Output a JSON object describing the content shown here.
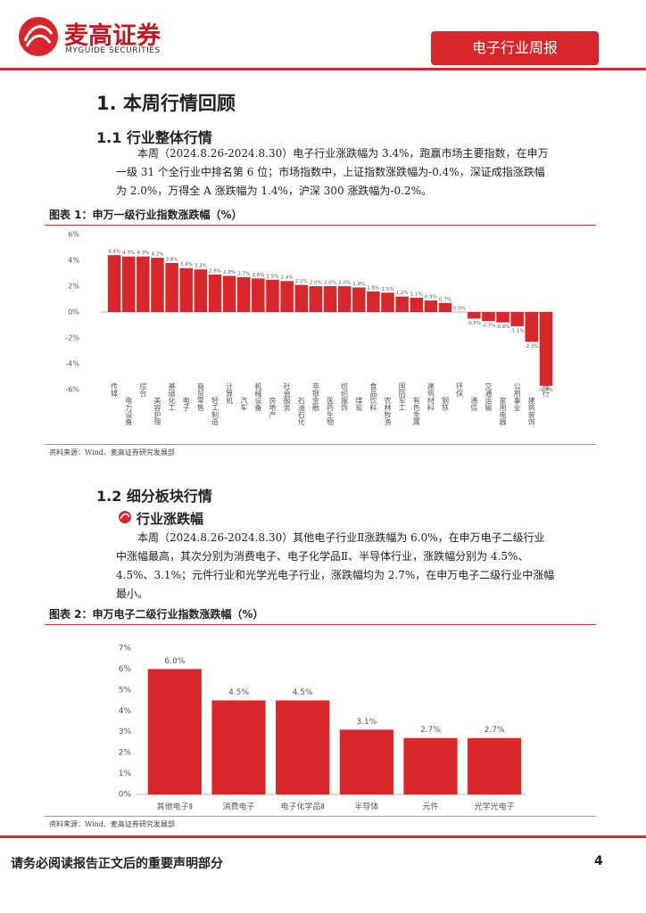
{
  "header": {
    "logo_cn": "麦高证券",
    "logo_en": "MYGUIDE SECURITIES",
    "report_type": "电子行业周报"
  },
  "h1": "1. 本周行情回顾",
  "s1": {
    "heading": "1.1 行业整体行情",
    "paragraph": "本周（2024.8.26-2024.8.30）电子行业涨跌幅为 3.4%，跑赢市场主要指数，在申万一级 31 个全行业中排名第 6 位；市场指数中，上证指数涨跌幅为-0.4%，深证成指涨跌幅为 2.0%，万得全 A 涨跌幅为 1.4%，沪深 300 涨跌幅为-0.2%。"
  },
  "s2": {
    "heading": "1.2 细分板块行情",
    "subheading": "行业涨跌幅",
    "paragraph": "本周（2024.8.26-2024.8.30）其他电子行业Ⅱ涨跌幅为 6.0%，在申万电子二级行业中涨幅最高，其次分别为消费电子、电子化学品Ⅱ、半导体行业，涨跌幅分别为 4.5%、4.5%、3.1%；元件行业和光学光电子行业，涨跌幅均为 2.7%，在申万电子二级行业中涨幅最小。"
  },
  "chart_data": [
    {
      "type": "bar",
      "title": "图表 1：申万一级行业指数涨跌幅（%）",
      "source": "资料来源：Wind、麦高证券研究发展部",
      "categories": [
        "传媒",
        "电力设备",
        "综合",
        "美容护理",
        "基础化工",
        "电子",
        "商贸零售",
        "轻工制造",
        "计算机",
        "汽车",
        "机械设备",
        "房地产",
        "社会服务",
        "石油石化",
        "非银金融",
        "医药生物",
        "纺织服饰",
        "煤炭",
        "食品饮料",
        "农林牧渔",
        "国防军工",
        "有色金属",
        "建筑材料",
        "钢铁",
        "环保",
        "通信",
        "交通运输",
        "家用电器",
        "公用事业",
        "建筑装饰",
        "银行"
      ],
      "values": [
        4.4,
        4.3,
        4.3,
        4.2,
        3.8,
        3.4,
        3.3,
        2.9,
        2.8,
        2.7,
        2.6,
        2.5,
        2.4,
        2.1,
        2.0,
        2.0,
        2.0,
        1.9,
        1.6,
        1.5,
        1.2,
        1.1,
        0.9,
        0.7,
        0.0,
        -0.5,
        -0.7,
        -0.8,
        -1.1,
        -2.3,
        -5.7
      ],
      "value_labels": [
        "4.4%",
        "4.3%",
        "4.3%",
        "4.2%",
        "3.8%",
        "3.4%",
        "3.3%",
        "2.9%",
        "2.8%",
        "2.7%",
        "2.6%",
        "2.5%",
        "2.4%",
        "2.1%",
        "2.0%",
        "2.0%",
        "2.0%",
        "1.9%",
        "1.6%",
        "1.5%",
        "1.2%",
        "1.1%",
        "0.9%",
        "0.7%",
        "0.0%",
        "-0.5%",
        "-0.7%",
        "-0.8%",
        "-1.1%",
        "-2.3%",
        "-5.7%"
      ],
      "color": "#d9262b",
      "ylim": [
        -6,
        6
      ],
      "yticks": [
        {
          "value": 6,
          "label": "6%"
        },
        {
          "value": 4,
          "label": "4%"
        },
        {
          "value": 2,
          "label": "2%"
        },
        {
          "value": 0,
          "label": "0%"
        },
        {
          "value": -2,
          "label": "-2%"
        },
        {
          "value": -4,
          "label": "-4%"
        },
        {
          "value": -6,
          "label": "-6%"
        }
      ]
    },
    {
      "type": "bar",
      "title": "图表 2：申万电子二级行业指数涨跌幅（%）",
      "source": "资料来源：Wind、麦高证券研究发展部",
      "categories": [
        "其他电子Ⅱ",
        "消费电子",
        "电子化学品Ⅱ",
        "半导体",
        "元件",
        "光学光电子"
      ],
      "values": [
        6.0,
        4.5,
        4.5,
        3.1,
        2.7,
        2.7
      ],
      "value_labels": [
        "6.0%",
        "4.5%",
        "4.5%",
        "3.1%",
        "2.7%",
        "2.7%"
      ],
      "color": "#d9262b",
      "ylim": [
        0,
        7
      ],
      "yticks": [
        {
          "value": 0,
          "label": "0%"
        },
        {
          "value": 1,
          "label": "1%"
        },
        {
          "value": 2,
          "label": "2%"
        },
        {
          "value": 3,
          "label": "3%"
        },
        {
          "value": 4,
          "label": "4%"
        },
        {
          "value": 5,
          "label": "5%"
        },
        {
          "value": 6,
          "label": "6%"
        },
        {
          "value": 7,
          "label": "7%"
        }
      ]
    }
  ],
  "footer": {
    "disclaimer": "请务必阅读报告正文后的重要声明部分",
    "page": 4
  }
}
